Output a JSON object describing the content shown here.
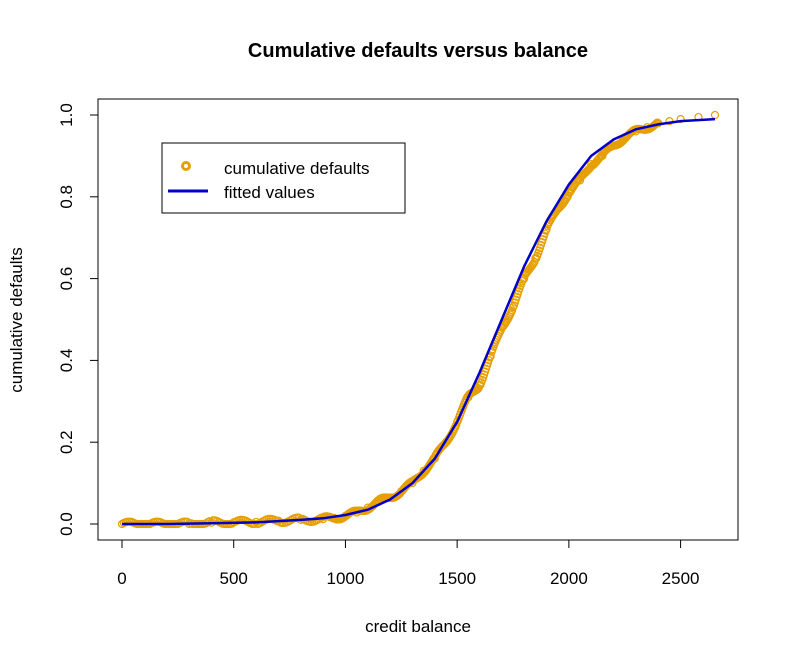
{
  "chart_data": {
    "type": "scatter",
    "title": "Cumulative defaults versus balance",
    "xlabel": "credit balance",
    "ylabel": "cumulative defaults",
    "xlim": [
      0,
      2654
    ],
    "ylim": [
      0,
      1
    ],
    "x_ticks": [
      0,
      500,
      1000,
      1500,
      2000,
      2500
    ],
    "y_ticks": [
      0.0,
      0.2,
      0.4,
      0.6,
      0.8,
      1.0
    ],
    "x_tick_labels": [
      "0",
      "500",
      "1000",
      "1500",
      "2000",
      "2500"
    ],
    "y_tick_labels": [
      "0.0",
      "0.2",
      "0.4",
      "0.6",
      "0.8",
      "1.0"
    ],
    "legend": {
      "position": "top-left",
      "entries": [
        {
          "label": "cumulative defaults",
          "marker": "circle",
          "color": "#E69F00"
        },
        {
          "label": "fitted values",
          "marker": "line",
          "color": "#0000CC"
        }
      ]
    },
    "series": [
      {
        "name": "cumulative defaults",
        "style": "points",
        "color": "#E69F00",
        "x": [
          0,
          100,
          200,
          300,
          400,
          500,
          600,
          700,
          800,
          900,
          950,
          1000,
          1050,
          1100,
          1150,
          1200,
          1250,
          1300,
          1350,
          1400,
          1450,
          1500,
          1550,
          1600,
          1650,
          1700,
          1750,
          1800,
          1850,
          1900,
          1950,
          2000,
          2050,
          2100,
          2150,
          2200,
          2250,
          2300,
          2350,
          2400,
          2450,
          2500,
          2580,
          2654
        ],
        "y": [
          0.0,
          0.0,
          0.0,
          0.0,
          0.003,
          0.004,
          0.005,
          0.008,
          0.01,
          0.012,
          0.015,
          0.02,
          0.028,
          0.04,
          0.055,
          0.065,
          0.08,
          0.1,
          0.13,
          0.16,
          0.2,
          0.25,
          0.31,
          0.34,
          0.41,
          0.48,
          0.53,
          0.6,
          0.65,
          0.72,
          0.77,
          0.81,
          0.84,
          0.88,
          0.9,
          0.925,
          0.945,
          0.96,
          0.97,
          0.98,
          0.985,
          0.99,
          0.995,
          1.0
        ]
      },
      {
        "name": "fitted values",
        "style": "line",
        "color": "#0000CC",
        "x": [
          0,
          200,
          400,
          600,
          800,
          900,
          1000,
          1100,
          1200,
          1300,
          1400,
          1500,
          1600,
          1700,
          1800,
          1900,
          2000,
          2100,
          2200,
          2300,
          2400,
          2500,
          2654
        ],
        "y": [
          0.0,
          0.0,
          0.002,
          0.004,
          0.01,
          0.014,
          0.022,
          0.035,
          0.06,
          0.1,
          0.16,
          0.25,
          0.37,
          0.5,
          0.63,
          0.74,
          0.83,
          0.9,
          0.94,
          0.965,
          0.977,
          0.985,
          0.99
        ]
      }
    ]
  }
}
